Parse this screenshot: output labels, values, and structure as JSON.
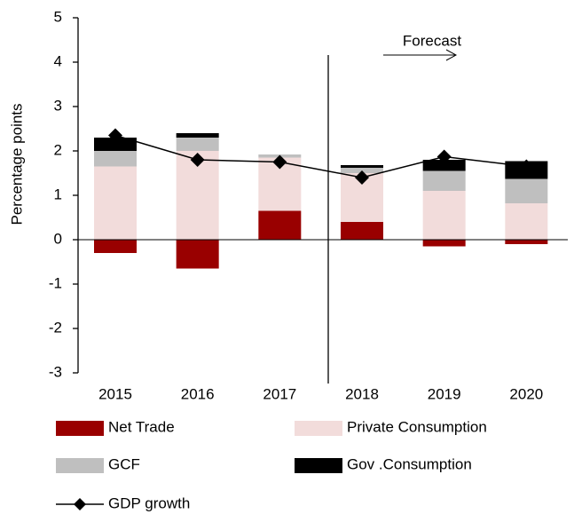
{
  "chart_data": {
    "type": "bar",
    "stacked": true,
    "y_label": "Percentage points",
    "annotation": "Forecast",
    "categories": [
      "2015",
      "2016",
      "2017",
      "2018",
      "2019",
      "2020"
    ],
    "series": [
      {
        "name": "Net Trade",
        "color": "#990000",
        "values": [
          -0.3,
          -0.65,
          0.65,
          0.4,
          -0.15,
          -0.1
        ]
      },
      {
        "name": "Private Consumption",
        "color": "#f2dcdb",
        "values": [
          1.65,
          2.0,
          1.2,
          1.1,
          1.1,
          0.82
        ]
      },
      {
        "name": "GCF",
        "color": "#bfbfbf",
        "values": [
          0.35,
          0.3,
          0.07,
          0.12,
          0.45,
          0.55
        ]
      },
      {
        "name": "Gov .Consumption",
        "color": "#000000",
        "values": [
          0.3,
          0.1,
          0.0,
          0.06,
          0.25,
          0.4
        ]
      },
      {
        "name": "GDP growth",
        "color": "#000000",
        "kind": "line",
        "values": [
          2.35,
          1.8,
          1.75,
          1.4,
          1.87,
          1.65
        ]
      }
    ],
    "ylim": [
      -3,
      5
    ],
    "yticks": [
      -3,
      -2,
      -1,
      0,
      1,
      2,
      3,
      4,
      5
    ]
  }
}
